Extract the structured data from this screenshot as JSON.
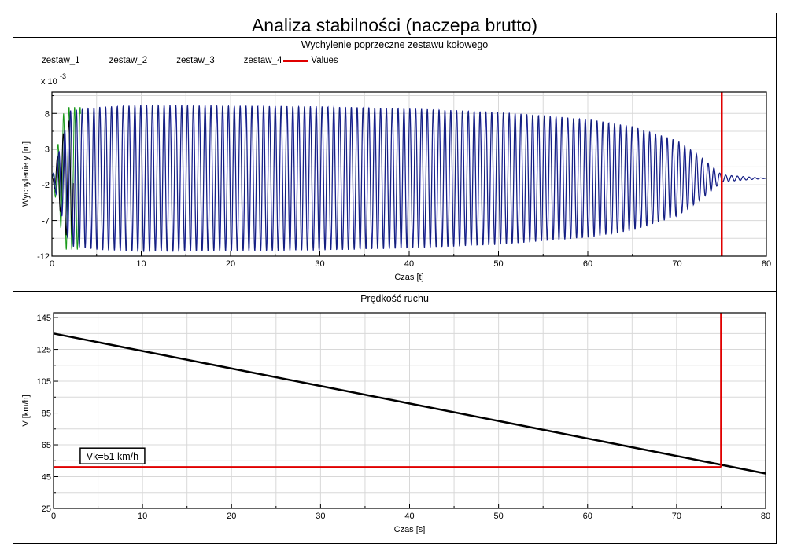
{
  "title": "Analiza stabilności (naczepa brutto)",
  "colors": {
    "zestaw_1": "#000000",
    "zestaw_2": "#1a9a1a",
    "zestaw_3": "#2a2acc",
    "zestaw_4": "#142078",
    "values": "#e00000",
    "grid": "#d8d8d8"
  },
  "legend": [
    {
      "label": "zestaw_1",
      "color": "#000000"
    },
    {
      "label": "zestaw_2",
      "color": "#1a9a1a"
    },
    {
      "label": "zestaw_3",
      "color": "#2a2acc"
    },
    {
      "label": "zestaw_4",
      "color": "#142078"
    },
    {
      "label": "Values",
      "color": "#e00000"
    }
  ],
  "chart_data": [
    {
      "type": "line",
      "title": "Wychylenie poprzeczne zestawu kołowego",
      "xlabel": "Czas [t]",
      "ylabel": "Wychylenie y [m]",
      "y_multiplier_label": "x 10",
      "y_multiplier_exponent": "-3",
      "xlim": [
        0,
        80
      ],
      "ylim": [
        -12,
        11
      ],
      "x_ticks": [
        0,
        10,
        20,
        30,
        40,
        50,
        60,
        70,
        80
      ],
      "y_ticks": [
        -12,
        -7,
        -2,
        3,
        8
      ],
      "grid": true,
      "description_of_signal": "oscillation of lateral displacement, amplitude about 10e-3 m, decaying to zero near t=75",
      "envelope": {
        "x": [
          0,
          2,
          5,
          10,
          20,
          30,
          40,
          50,
          60,
          65,
          70,
          72,
          74,
          75,
          80
        ],
        "amplitude": [
          0,
          9.5,
          10,
          10.3,
          10.2,
          10.1,
          9.8,
          9.3,
          8.3,
          7.3,
          5.3,
          3.6,
          1.6,
          0.5,
          0
        ],
        "center": -1.1
      },
      "series": [
        {
          "name": "zestaw_1"
        },
        {
          "name": "zestaw_2"
        },
        {
          "name": "zestaw_3"
        },
        {
          "name": "zestaw_4"
        }
      ],
      "marker_line": {
        "name": "Values",
        "x": 75
      }
    },
    {
      "type": "line",
      "title": "Prędkość ruchu",
      "xlabel": "Czas [s]",
      "ylabel": "V [km/h]",
      "xlim": [
        0,
        80
      ],
      "ylim": [
        25,
        148
      ],
      "x_ticks": [
        0,
        10,
        20,
        30,
        40,
        50,
        60,
        70,
        80
      ],
      "y_ticks": [
        25,
        45,
        65,
        85,
        105,
        125,
        145
      ],
      "grid": true,
      "series": [
        {
          "name": "zestaw_1",
          "x": [
            0,
            80
          ],
          "y": [
            135,
            47
          ]
        }
      ],
      "marker_vertical": {
        "x": 75,
        "y_from": 51
      },
      "marker_horizontal": {
        "y": 51,
        "x_to": 75
      },
      "annotation": {
        "text": "Vk=51 km/h",
        "x": 3,
        "y": 58
      }
    }
  ]
}
